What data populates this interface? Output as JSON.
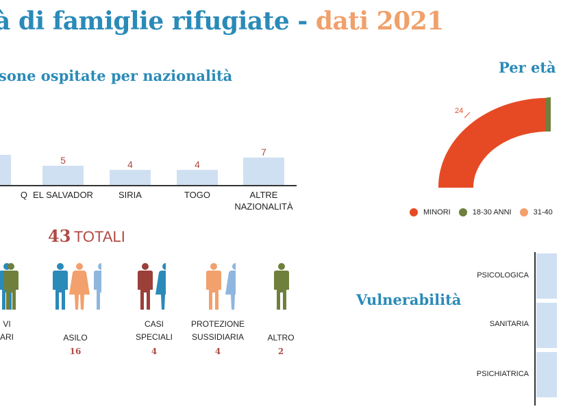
{
  "title": {
    "part1": "à di famiglie rifugiate -",
    "part2": "dati 2021"
  },
  "nationality": {
    "subtitle": "sone ospitate per nazionalità",
    "chart_data": {
      "type": "bar",
      "categories": [
        "Q",
        "EL SALVADOR",
        "SIRIA",
        "TOGO",
        "ALTRE NAZIONALITÀ"
      ],
      "values": [
        null,
        5,
        4,
        4,
        7
      ],
      "value_labels": [
        "",
        "5",
        "4",
        "4",
        "7"
      ]
    }
  },
  "legal": {
    "totals_number": "43",
    "totals_label": "TOTALI",
    "chart_data": {
      "type": "table",
      "categories": [
        "VI\nARI",
        "ASILO",
        "CASI\nSPECIALI",
        "PROTEZIONE\nSUSSIDIARIA",
        "ALTRO"
      ],
      "values": [
        null,
        16,
        4,
        4,
        2
      ],
      "value_labels": [
        "",
        "16",
        "4",
        "4",
        "2"
      ]
    }
  },
  "age": {
    "subtitle": "Per età",
    "chart_data": {
      "type": "pie",
      "categories": [
        "MINORI",
        "18-30 ANNI",
        "31-40"
      ],
      "values": [
        24,
        null,
        null
      ],
      "value_labels": [
        "24",
        "",
        ""
      ],
      "colors": [
        "#e64a24",
        "#6f7f3c",
        "#f2a06c"
      ]
    }
  },
  "vulnerability": {
    "subtitle": "Vulnerabilità",
    "chart_data": {
      "type": "bar",
      "categories": [
        "PSICOLOGICA",
        "SANITARIA",
        "PSICHIATRICA"
      ]
    }
  },
  "colors": {
    "blue": "#2a8ab8",
    "orange": "#f0a06a",
    "red": "#b04a44",
    "bar": "#cfe0f2"
  }
}
